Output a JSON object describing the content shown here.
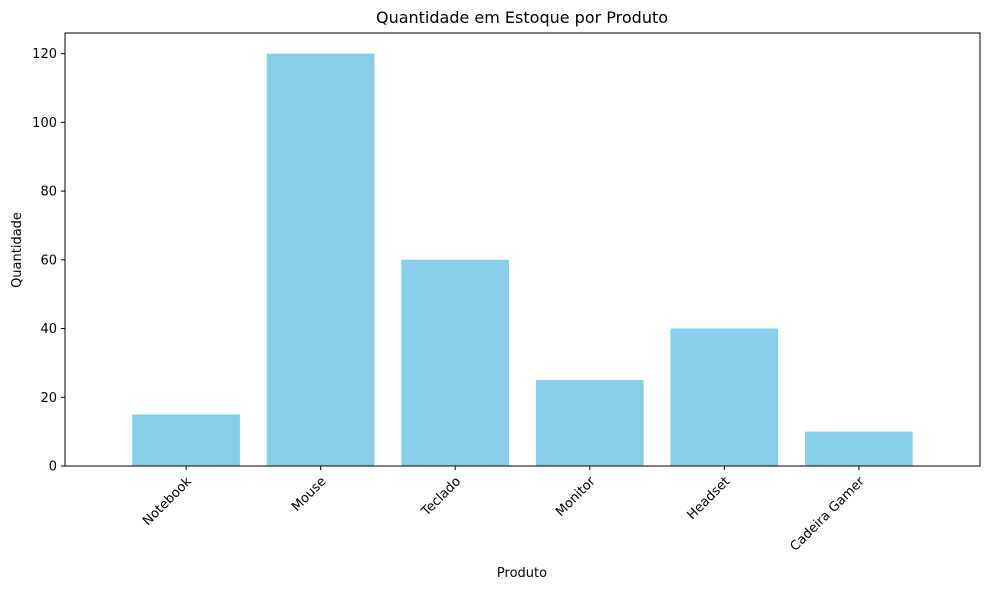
{
  "chart_data": {
    "type": "bar",
    "title": "Quantidade em Estoque por Produto",
    "xlabel": "Produto",
    "ylabel": "Quantidade",
    "categories": [
      "Notebook",
      "Mouse",
      "Teclado",
      "Monitor",
      "Headset",
      "Cadeira Gamer"
    ],
    "values": [
      15,
      120,
      60,
      25,
      40,
      10
    ],
    "ylim": [
      0,
      126
    ],
    "yticks": [
      0,
      20,
      40,
      60,
      80,
      100,
      120
    ],
    "ytick_labels": [
      "0",
      "20",
      "40",
      "60",
      "80",
      "100",
      "120"
    ],
    "bar_color": "#87ceeb",
    "grid": false,
    "legend": "none"
  }
}
